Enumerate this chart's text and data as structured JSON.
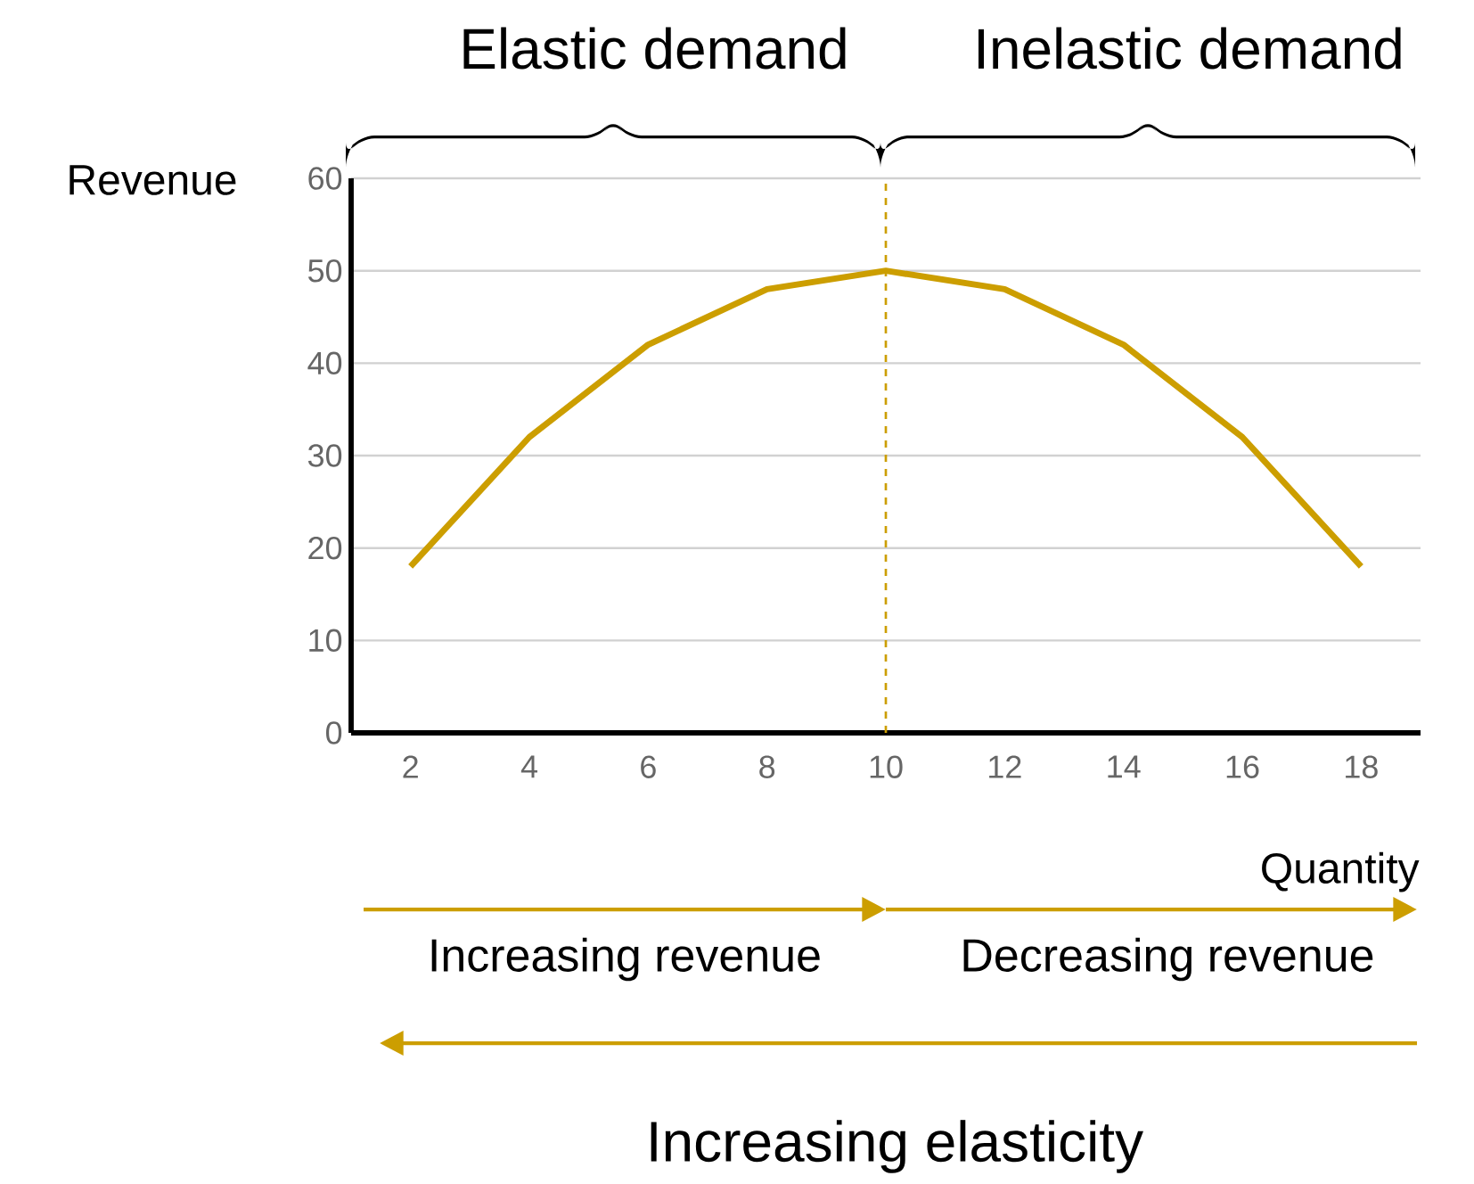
{
  "chart_data": {
    "type": "line",
    "xlabel": "Quantity",
    "ylabel": "Revenue",
    "x": [
      2,
      4,
      6,
      8,
      10,
      12,
      14,
      16,
      18
    ],
    "values": [
      18,
      32,
      42,
      48,
      50,
      48,
      42,
      32,
      18
    ],
    "color": "#cc9e00",
    "xlim": [
      1,
      19
    ],
    "xticks": [
      2,
      4,
      6,
      8,
      10,
      12,
      14,
      16,
      18
    ],
    "ylim": [
      0,
      60
    ],
    "yticks": [
      0,
      10,
      20,
      30,
      40,
      50,
      60
    ],
    "grid": "y",
    "marker": "none",
    "line_style": "solid",
    "ref_lines": [
      {
        "axis": "x",
        "value": 10,
        "color": "#cc9e00",
        "line_style": "dashed"
      }
    ],
    "annotations": [
      "Elastic demand",
      "Inelastic demand",
      "Increasing revenue",
      "Decreasing revenue",
      "Increasing elasticity"
    ]
  }
}
